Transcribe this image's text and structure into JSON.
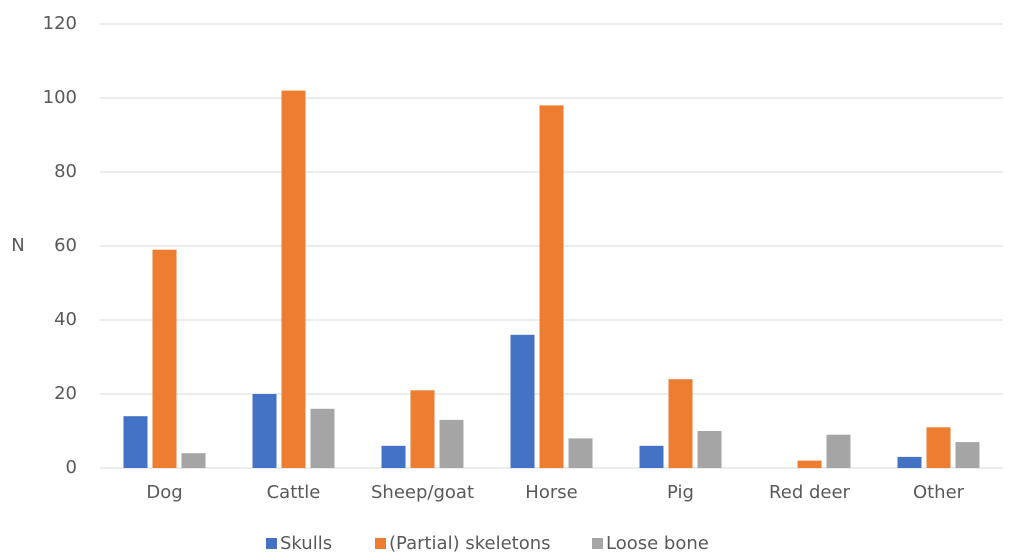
{
  "chart_data": {
    "type": "bar",
    "y_label": "N",
    "categories": [
      "Dog",
      "Cattle",
      "Sheep/goat",
      "Horse",
      "Pig",
      "Red deer",
      "Other"
    ],
    "series": [
      {
        "name": "Skulls",
        "color": "#4472c4",
        "values": [
          14,
          20,
          6,
          36,
          6,
          0,
          3
        ]
      },
      {
        "name": "(Partial) skeletons",
        "color": "#ed7d31",
        "values": [
          59,
          102,
          21,
          98,
          24,
          2,
          11
        ]
      },
      {
        "name": "Loose bone",
        "color": "#a5a5a5",
        "values": [
          4,
          16,
          13,
          8,
          10,
          9,
          7
        ]
      }
    ],
    "ylim": [
      0,
      120
    ],
    "yticks": [
      0,
      20,
      40,
      60,
      80,
      100,
      120
    ],
    "grid": true,
    "legend": "bottom"
  }
}
